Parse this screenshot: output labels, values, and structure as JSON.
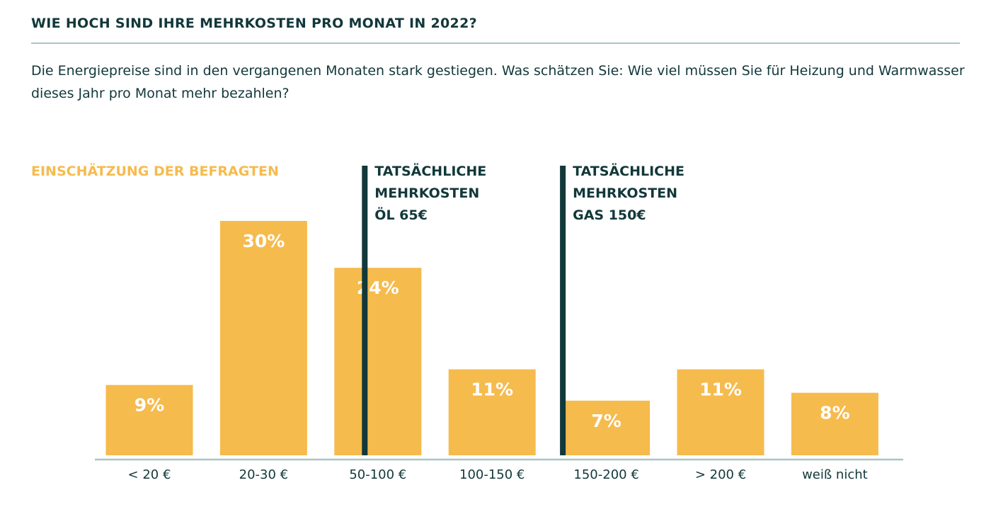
{
  "header": {
    "title": "WIE HOCH SIND IHRE MEHRKOSTEN PRO MONAT IN 2022?",
    "subtitle": "Die Energiepreise sind in den vergangenen Monaten stark gestiegen. Was schätzen Sie: Wie viel müssen Sie für Heizung und Warmwasser dieses Jahr pro Monat mehr bezahlen?"
  },
  "colors": {
    "bar": "#f6bb4d",
    "series_label": "#f6bb4d",
    "marker": "#12383a",
    "axis": "#a9c4c6",
    "text": "#12383a"
  },
  "chart_data": {
    "type": "bar",
    "series_label": "EINSCHÄTZUNG DER BEFRAGTEN",
    "categories": [
      "< 20 €",
      "20-30 €",
      "50-100 €",
      "100-150 €",
      "150-200 €",
      "> 200 €",
      "weiß nicht"
    ],
    "values": [
      9,
      30,
      24,
      11,
      7,
      11,
      8
    ],
    "value_labels": [
      "9%",
      "30%",
      "24%",
      "11%",
      "7%",
      "11%",
      "8%"
    ],
    "unit": "%",
    "ylim": [
      0,
      30
    ],
    "grid": false,
    "markers": [
      {
        "label_lines": [
          "TATSÄCHLICHE",
          "MEHRKOSTEN",
          "ÖL 65€"
        ],
        "category_index": 2,
        "fraction_within_category": 0.35
      },
      {
        "label_lines": [
          "TATSÄCHLICHE",
          "MEHRKOSTEN",
          "GAS 150€"
        ],
        "category_index": 4,
        "fraction_within_category": 0.0
      }
    ]
  }
}
